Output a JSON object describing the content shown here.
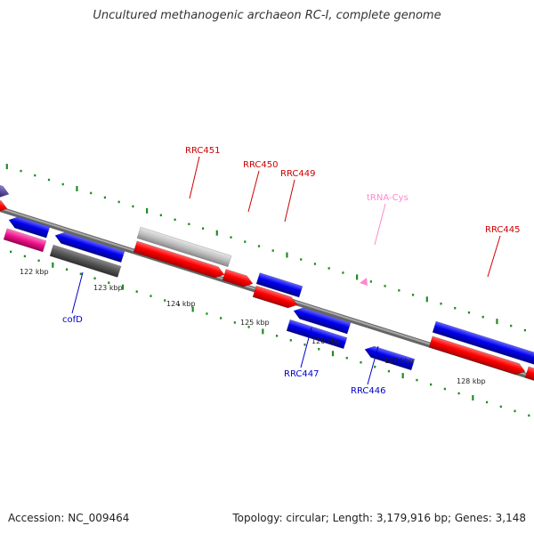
{
  "title": "Uncultured methanogenic archaeon RC-I, complete genome",
  "footer": {
    "accession": "Accession: NC_009464",
    "summary": "Topology: circular; Length: 3,179,916 bp; Genes: 3,148"
  },
  "ticks": [
    {
      "label": "122 kbp",
      "kbp": 122
    },
    {
      "label": "123 kbp",
      "kbp": 123
    },
    {
      "label": "124 kbp",
      "kbp": 124
    },
    {
      "label": "125 kbp",
      "kbp": 125
    },
    {
      "label": "126 kbp",
      "kbp": 126
    },
    {
      "label": "127 kbp",
      "kbp": 127
    },
    {
      "label": "128 kbp",
      "kbp": 128
    }
  ],
  "gene_labels": [
    {
      "id": "RRC451",
      "text": "RRC451",
      "color": "#cc0000"
    },
    {
      "id": "RRC450",
      "text": "RRC450",
      "color": "#cc0000"
    },
    {
      "id": "RRC449",
      "text": "RRC449",
      "color": "#cc0000"
    },
    {
      "id": "tRNA-Cys",
      "text": "tRNA-Cys",
      "color": "#ff88cc"
    },
    {
      "id": "RRC445",
      "text": "RRC445",
      "color": "#cc0000"
    },
    {
      "id": "cofD",
      "text": "cofD",
      "color": "#0000cc"
    },
    {
      "id": "RRC447",
      "text": "RRC447",
      "color": "#0000cc"
    },
    {
      "id": "RRC446",
      "text": "RRC446",
      "color": "#0000cc"
    }
  ],
  "colors": {
    "cds_red": "#ff0000",
    "cds_blue": "#0000ee",
    "gray_feature": "#bbbbbb",
    "dark_feature": "#555555",
    "magenta_feature": "#ee1188",
    "purple_feature": "#5a4a9a",
    "trna": "#ff88cc",
    "backbone": "#888888",
    "dots": "#228b22"
  }
}
